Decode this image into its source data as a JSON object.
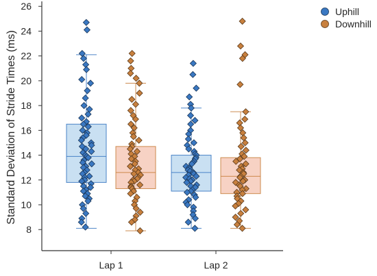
{
  "chart_data": {
    "type": "box",
    "categories": [
      "Lap 1",
      "Lap 2"
    ],
    "xlabel": "",
    "ylabel": "Standard Deviation of Stride Times (ms)",
    "ylim": [
      6.3,
      26.4
    ],
    "yticks": [
      8,
      10,
      12,
      14,
      16,
      18,
      20,
      22,
      24,
      26
    ],
    "grid": false,
    "legend": {
      "placement": "top-right"
    },
    "series": [
      {
        "name": "Uphill",
        "color": "#3a78c2",
        "box_fill": "#c9e0f2",
        "boxes": [
          {
            "category": "Lap 1",
            "whisker_low": 8.1,
            "q1": 11.8,
            "median": 13.9,
            "q3": 16.5,
            "whisker_high": 22.1
          },
          {
            "category": "Lap 2",
            "whisker_low": 8.1,
            "q1": 11.1,
            "median": 12.6,
            "q3": 14.0,
            "whisker_high": 17.8
          }
        ],
        "points": [
          [
            24.7,
            24.1,
            22.2,
            21.8,
            21.3,
            20.9,
            20.1,
            19.8,
            19.2,
            18.6,
            18.0,
            17.7,
            17.3,
            17.0,
            16.7,
            16.5,
            16.3,
            16.0,
            15.8,
            15.6,
            15.4,
            15.2,
            15.0,
            14.8,
            14.7,
            14.5,
            14.3,
            14.2,
            14.0,
            13.9,
            13.8,
            13.6,
            13.4,
            13.3,
            13.1,
            13.0,
            12.8,
            12.6,
            12.5,
            12.3,
            12.2,
            12.0,
            11.9,
            11.7,
            11.5,
            11.4,
            11.2,
            11.1,
            10.9,
            10.7,
            10.5,
            10.3,
            10.0,
            9.7,
            9.3,
            8.9,
            8.6,
            8.2
          ],
          [
            21.4,
            20.5,
            19.4,
            18.7,
            18.1,
            17.8,
            17.2,
            16.8,
            16.5,
            16.0,
            15.7,
            15.3,
            15.0,
            14.8,
            14.5,
            14.3,
            14.1,
            14.0,
            13.8,
            13.7,
            13.5,
            13.4,
            13.3,
            13.1,
            13.0,
            12.9,
            12.8,
            12.7,
            12.6,
            12.5,
            12.4,
            12.3,
            12.2,
            12.1,
            12.0,
            11.9,
            11.8,
            11.6,
            11.5,
            11.4,
            11.2,
            11.1,
            11.0,
            10.8,
            10.6,
            10.4,
            10.2,
            10.0,
            9.8,
            9.5,
            9.2,
            8.9,
            8.6,
            8.1
          ]
        ]
      },
      {
        "name": "Downhill",
        "color": "#c8803e",
        "box_fill": "#f7d2c4",
        "boxes": [
          {
            "category": "Lap 1",
            "whisker_low": 7.9,
            "q1": 11.3,
            "median": 12.6,
            "q3": 14.7,
            "whisker_high": 19.8
          },
          {
            "category": "Lap 2",
            "whisker_low": 8.1,
            "q1": 10.9,
            "median": 12.3,
            "q3": 13.8,
            "whisker_high": 17.5
          }
        ],
        "points": [
          [
            22.2,
            21.6,
            21.0,
            20.6,
            20.2,
            19.8,
            19.0,
            18.5,
            18.1,
            17.6,
            17.2,
            16.9,
            16.5,
            16.2,
            15.8,
            15.5,
            15.2,
            14.9,
            14.7,
            14.5,
            14.3,
            14.1,
            13.9,
            13.7,
            13.5,
            13.3,
            13.1,
            12.9,
            12.8,
            12.6,
            12.5,
            12.4,
            12.2,
            12.1,
            12.0,
            11.9,
            11.8,
            11.6,
            11.5,
            11.4,
            11.3,
            11.1,
            10.9,
            10.6,
            10.3,
            10.0,
            9.7,
            9.4,
            9.1,
            8.8,
            8.6,
            7.9
          ],
          [
            24.8,
            22.8,
            22.1,
            21.8,
            19.7,
            17.5,
            16.9,
            16.6,
            16.2,
            15.8,
            15.4,
            15.0,
            14.7,
            14.4,
            14.1,
            13.9,
            13.7,
            13.5,
            13.3,
            13.1,
            12.9,
            12.8,
            12.6,
            12.5,
            12.3,
            12.2,
            12.0,
            11.9,
            11.8,
            11.6,
            11.5,
            11.3,
            11.2,
            11.0,
            10.9,
            10.7,
            10.5,
            10.3,
            10.1,
            9.9,
            9.6,
            9.3,
            9.0,
            8.7,
            8.4,
            8.1
          ]
        ]
      }
    ]
  }
}
